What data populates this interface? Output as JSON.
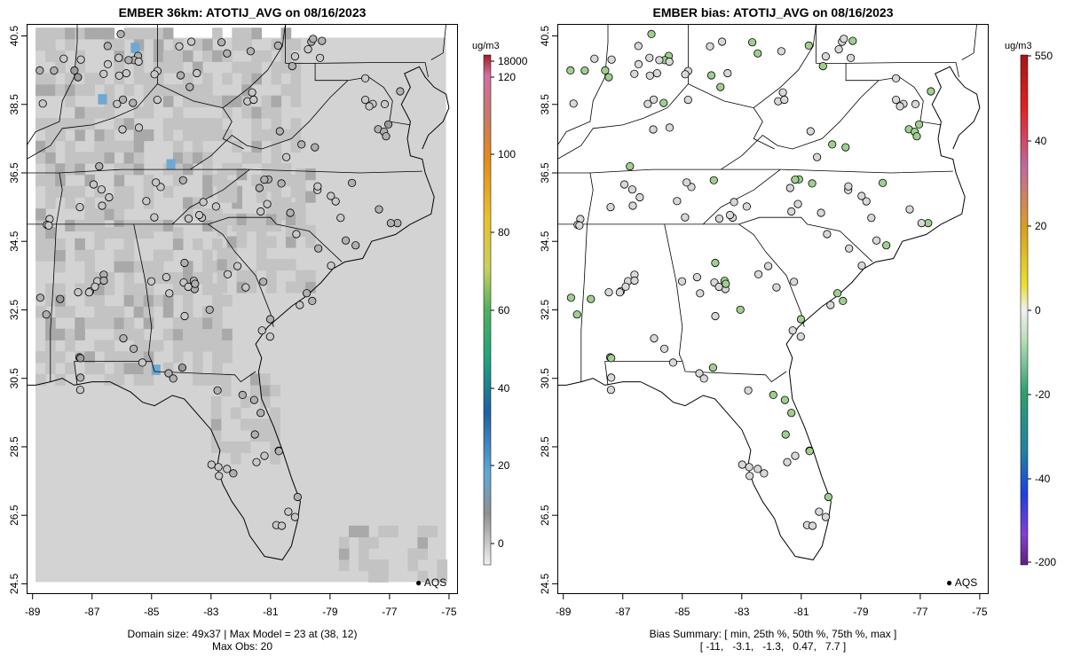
{
  "left_panel": {
    "title": "EMBER 36km: ATOTIJ_AVG on 08/16/2023",
    "x_ticks": [
      "-89",
      "-87",
      "-85",
      "-83",
      "-81",
      "-79",
      "-77",
      "-75"
    ],
    "y_ticks": [
      "40.5",
      "38.5",
      "36.5",
      "34.5",
      "32.5",
      "30.5",
      "28.5",
      "26.5",
      "24.5"
    ],
    "caption_line1": "Domain size: 49x37 | Max Model = 23 at (38, 12)",
    "caption_line2": "Max Obs: 20",
    "legend_label": "AQS",
    "colorbar": {
      "unit": "ug/m3",
      "labels": [
        "18000",
        "120",
        "100",
        "80",
        "60",
        "40",
        "20",
        "0"
      ]
    }
  },
  "right_panel": {
    "title": "EMBER bias: ATOTIJ_AVG on 08/16/2023",
    "x_ticks": [
      "-89",
      "-87",
      "-85",
      "-83",
      "-81",
      "-79",
      "-77",
      "-75"
    ],
    "y_ticks": [
      "40.5",
      "38.5",
      "36.5",
      "34.5",
      "32.5",
      "30.5",
      "28.5",
      "26.5",
      "24.5"
    ],
    "caption_line1": "Bias Summary: [ min, 25th %, 50th %, 75th %, max ]",
    "caption_line2": "[ -11,   -3.1,   -1.3,   0.47,   7.7 ]",
    "legend_label": "AQS",
    "colorbar": {
      "unit": "ug/m3",
      "labels": [
        "550",
        "40",
        "20",
        "0",
        "-20",
        "-40",
        "-200"
      ]
    }
  },
  "colors": {
    "model_base": "#d3d3d3",
    "model_mid": "#c3c3c3",
    "model_dark": "#a9a9a9",
    "model_blue": "#6fa8d0",
    "site_gray": "#c8c8c8",
    "site_green": "#9fcf8f",
    "site_yellow": "#eee8a8"
  }
}
